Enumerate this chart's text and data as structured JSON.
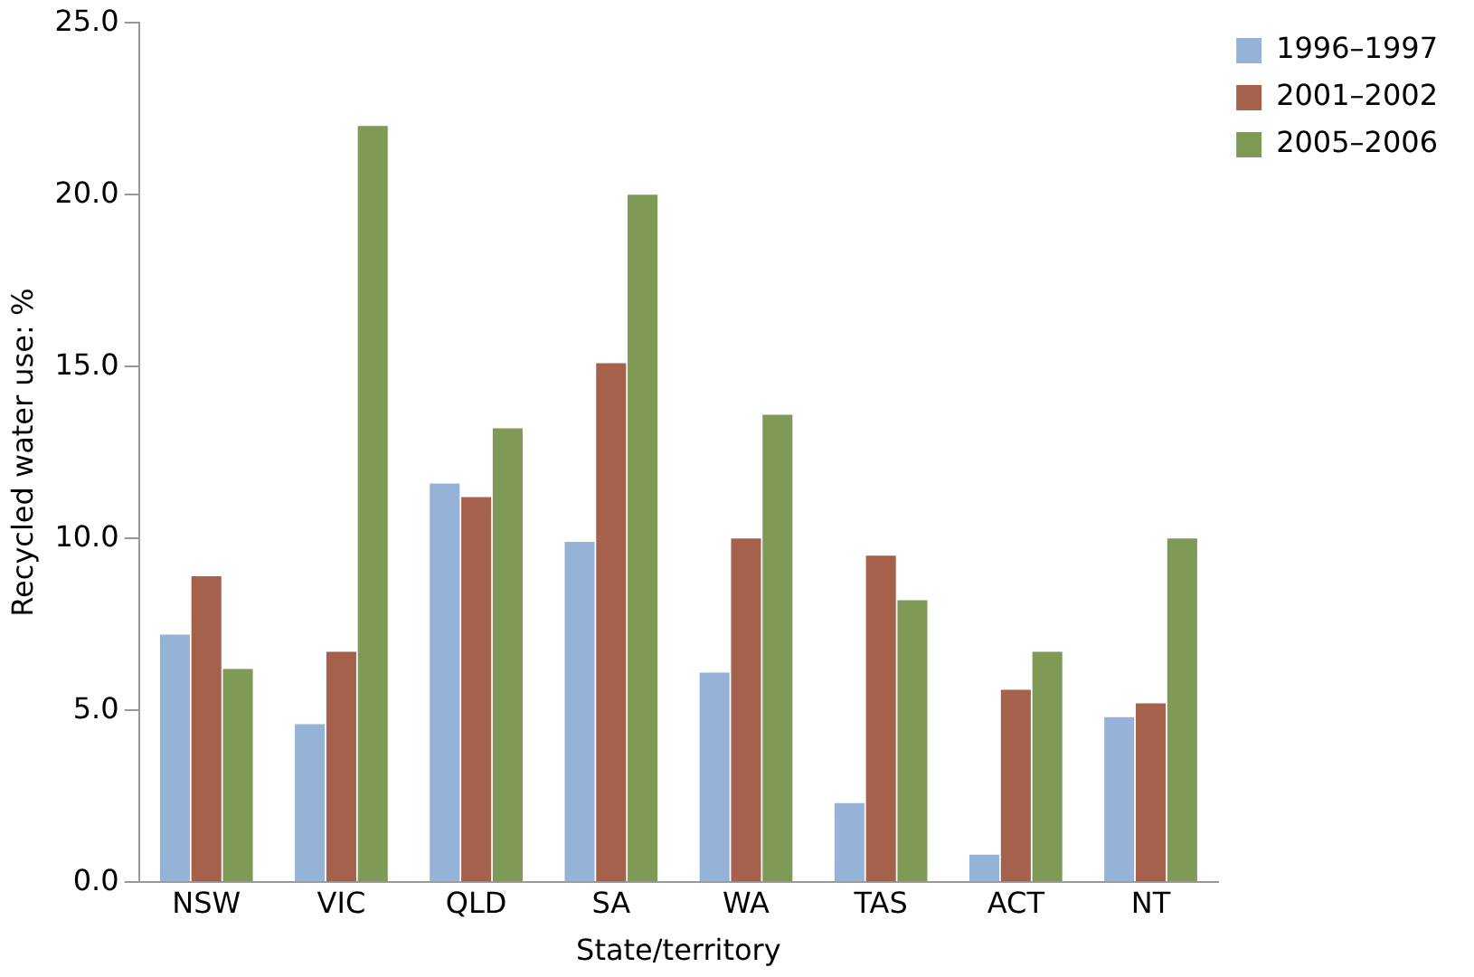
{
  "chart_data": {
    "type": "bar",
    "xlabel": "State/territory",
    "ylabel": "Recycled water use: %",
    "categories": [
      "NSW",
      "VIC",
      "QLD",
      "SA",
      "WA",
      "TAS",
      "ACT",
      "NT"
    ],
    "series": [
      {
        "name": "1996–1997",
        "color": "#95b3d7",
        "values": [
          7.2,
          4.6,
          11.6,
          9.9,
          6.1,
          2.3,
          0.8,
          4.8
        ]
      },
      {
        "name": "2001–2002",
        "color": "#a5614b",
        "values": [
          8.9,
          6.7,
          11.2,
          15.1,
          10.0,
          9.5,
          5.6,
          5.2
        ]
      },
      {
        "name": "2005–2006",
        "color": "#7f9a57",
        "values": [
          6.2,
          22.0,
          13.2,
          20.0,
          13.6,
          8.2,
          6.7,
          10.0
        ]
      }
    ],
    "ylim": [
      0,
      25
    ],
    "yticks": [
      {
        "value": 0,
        "label": "0.0"
      },
      {
        "value": 5,
        "label": "5.0"
      },
      {
        "value": 10,
        "label": "10.0"
      },
      {
        "value": 15,
        "label": "15.0"
      },
      {
        "value": 20,
        "label": "20.0"
      },
      {
        "value": 25,
        "label": "25.0"
      }
    ],
    "grid": false,
    "legend": "top right"
  }
}
